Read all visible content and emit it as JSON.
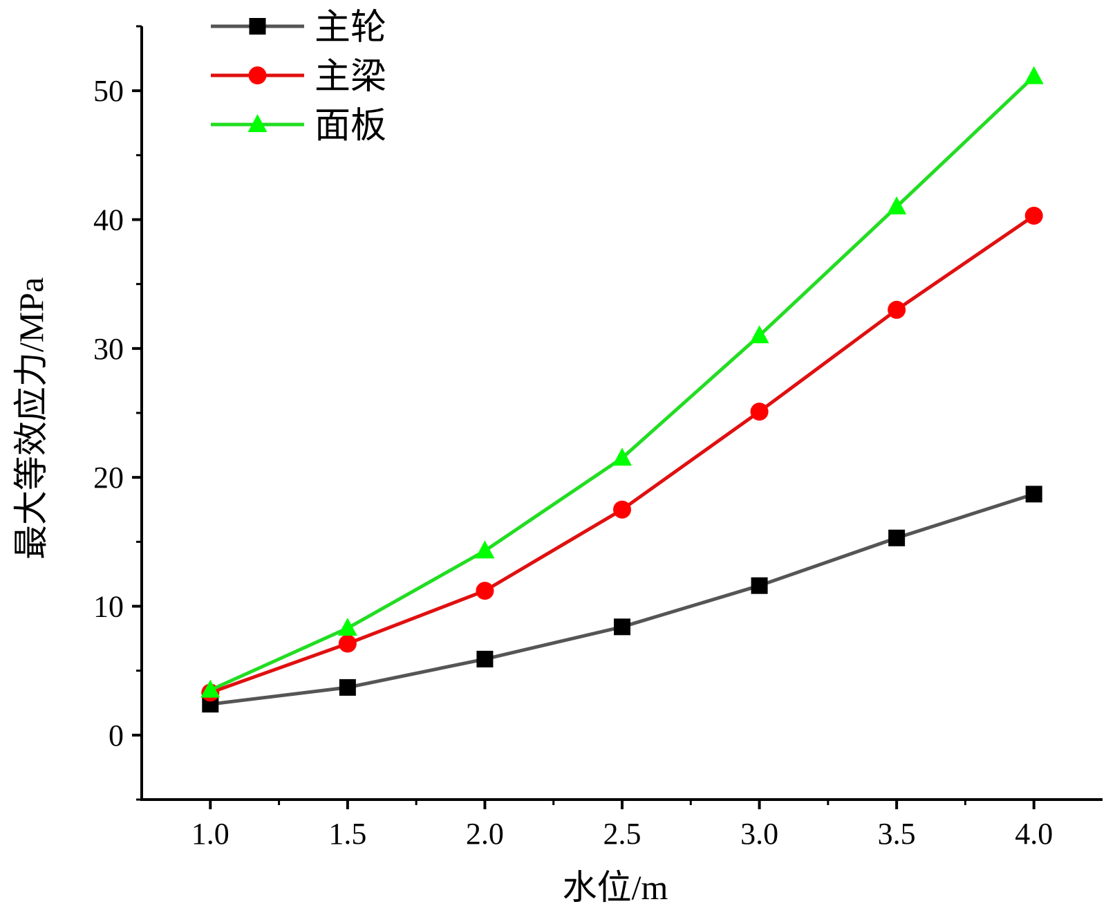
{
  "chart_data": {
    "type": "line",
    "title": "",
    "xlabel": "水位/m",
    "ylabel": "最大等效应力/MPa",
    "x": [
      1.0,
      1.5,
      2.0,
      2.5,
      3.0,
      3.5,
      4.0
    ],
    "x_tick_labels": [
      "1.0",
      "1.5",
      "2.0",
      "2.5",
      "3.0",
      "3.5",
      "4.0"
    ],
    "y_tick_values": [
      0,
      10,
      20,
      30,
      40,
      50
    ],
    "y_tick_labels": [
      "0",
      "10",
      "20",
      "30",
      "40",
      "50"
    ],
    "xlim": [
      0.75,
      4.25
    ],
    "ylim": [
      -5,
      55
    ],
    "grid": false,
    "legend_position": "top-left",
    "series": [
      {
        "name": "主轮",
        "color": "#000000",
        "line_color": "#555555",
        "marker": "square",
        "values": [
          2.4,
          3.7,
          5.9,
          8.4,
          11.6,
          15.3,
          18.7
        ]
      },
      {
        "name": "主梁",
        "color": "#ff0000",
        "line_color": "#e01010",
        "marker": "circle",
        "values": [
          3.3,
          7.1,
          11.2,
          17.5,
          25.1,
          33.0,
          40.3
        ]
      },
      {
        "name": "面板",
        "color": "#00ff00",
        "line_color": "#22dd22",
        "marker": "triangle",
        "values": [
          3.5,
          8.3,
          14.3,
          21.5,
          31.0,
          41.0,
          51.1
        ]
      }
    ]
  }
}
